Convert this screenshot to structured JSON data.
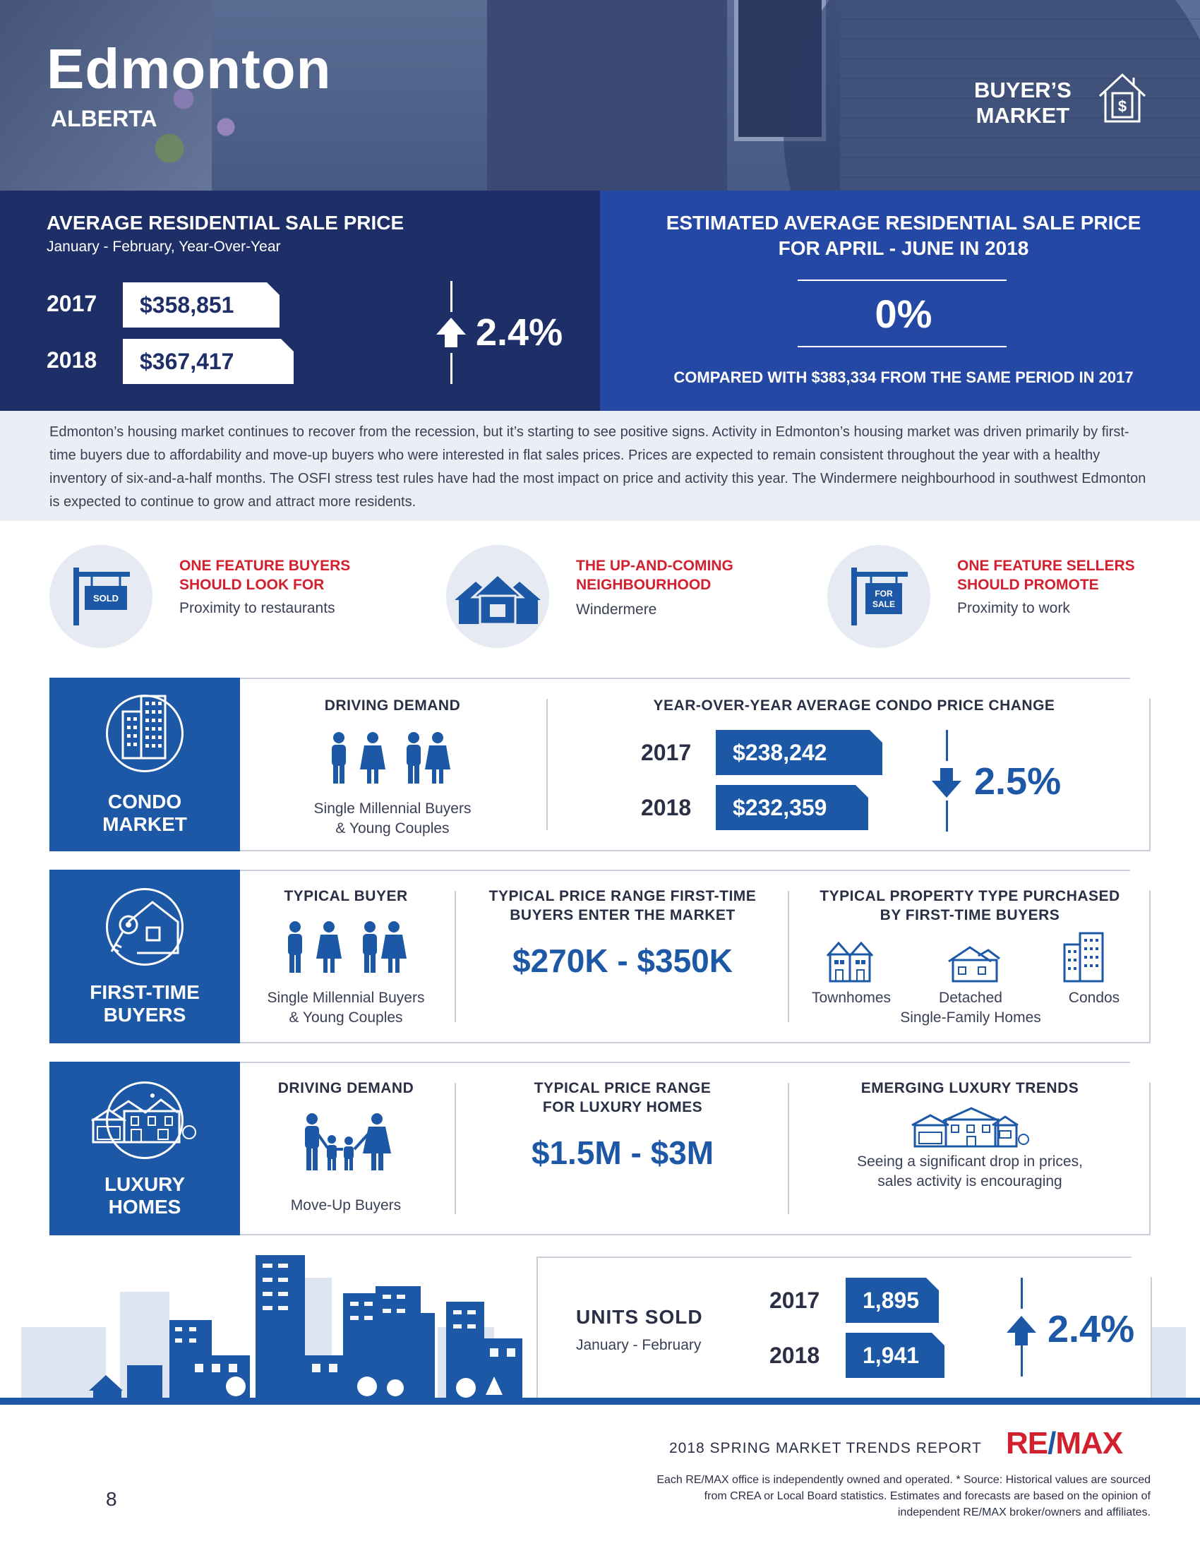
{
  "header": {
    "city": "Edmonton",
    "province": "ALBERTA",
    "market_type_line1": "BUYER’S",
    "market_type_line2": "MARKET",
    "market_icon": "house-dollar-icon"
  },
  "avg_price": {
    "title": "AVERAGE RESIDENTIAL SALE PRICE",
    "subtitle": "January - February, Year-Over-Year",
    "rows": [
      {
        "year": "2017",
        "value": "$358,851"
      },
      {
        "year": "2018",
        "value": "$367,417"
      }
    ],
    "change": "2.4%",
    "direction": "up"
  },
  "estimate": {
    "title_line1": "ESTIMATED AVERAGE RESIDENTIAL SALE PRICE",
    "title_line2": "FOR APRIL - JUNE IN 2018",
    "value": "0%",
    "compare": "COMPARED WITH $383,334 FROM THE SAME PERIOD IN 2017"
  },
  "description": "Edmonton’s housing market continues to recover from the recession, but it’s starting to see positive signs. Activity in Edmonton’s housing market was driven primarily by first-time buyers due to affordability and move-up buyers who were interested in flat sales prices. Prices are expected to remain consistent throughout the year with a healthy inventory of six-and-a-half months. The OSFI stress test rules have had the most impact on price and activity this year. The Windermere neighbourhood in southwest Edmonton is expected to continue to grow and attract more residents.",
  "features": [
    {
      "title_line1": "ONE FEATURE BUYERS",
      "title_line2": "SHOULD LOOK FOR",
      "value": "Proximity to restaurants",
      "icon": "sold-sign-icon",
      "sign_text": "SOLD"
    },
    {
      "title_line1": "THE UP-AND-COMING",
      "title_line2": "NEIGHBOURHOOD",
      "value": "Windermere",
      "icon": "neighbourhood-houses-icon"
    },
    {
      "title_line1": "ONE FEATURE SELLERS",
      "title_line2": "SHOULD PROMOTE",
      "value": "Proximity to work",
      "icon": "for-sale-sign-icon",
      "sign_text_1": "FOR",
      "sign_text_2": "SALE"
    }
  ],
  "condo": {
    "label_line1": "CONDO",
    "label_line2": "MARKET",
    "demand_title": "DRIVING DEMAND",
    "demand_text_1": "Single Millennial Buyers",
    "demand_text_2": "& Young Couples",
    "price_title": "YEAR-OVER-YEAR AVERAGE CONDO PRICE CHANGE",
    "rows": [
      {
        "year": "2017",
        "value": "$238,242"
      },
      {
        "year": "2018",
        "value": "$232,359"
      }
    ],
    "change": "2.5%",
    "direction": "down"
  },
  "first_time": {
    "label_line1": "FIRST-TIME",
    "label_line2": "BUYERS",
    "buyer_title": "TYPICAL BUYER",
    "buyer_text_1": "Single Millennial Buyers",
    "buyer_text_2": "& Young Couples",
    "range_title_1": "TYPICAL PRICE RANGE FIRST-TIME",
    "range_title_2": "BUYERS ENTER THE MARKET",
    "range_value": "$270K - $350K",
    "type_title_1": "TYPICAL PROPERTY TYPE PURCHASED",
    "type_title_2": "BY FIRST-TIME BUYERS",
    "types": [
      "Townhomes",
      "Detached",
      "Condos"
    ],
    "types_sub": "Single-Family Homes"
  },
  "luxury": {
    "label_line1": "LUXURY",
    "label_line2": "HOMES",
    "demand_title": "DRIVING DEMAND",
    "demand_text": "Move-Up Buyers",
    "range_title_1": "TYPICAL PRICE RANGE",
    "range_title_2": "FOR LUXURY HOMES",
    "range_value": "$1.5M - $3M",
    "trend_title": "EMERGING LUXURY TRENDS",
    "trend_text_1": "Seeing a significant drop in prices,",
    "trend_text_2": "sales activity is encouraging"
  },
  "units_sold": {
    "title": "UNITS SOLD",
    "subtitle": "January - February",
    "rows": [
      {
        "year": "2017",
        "value": "1,895"
      },
      {
        "year": "2018",
        "value": "1,941"
      }
    ],
    "change": "2.4%",
    "direction": "up"
  },
  "footer": {
    "report": "2018 SPRING MARKET TRENDS REPORT",
    "logo_a": "RE",
    "logo_b": "/",
    "logo_c": "MAX",
    "disclaimer_1": "Each RE/MAX office is independently owned and operated. * Source: Historical values are sourced",
    "disclaimer_2": "from CREA or Local Board statistics. Estimates and forecasts are based on the opinion of",
    "disclaimer_3": "independent RE/MAX broker/owners and affiliates.",
    "page": "8"
  },
  "colors": {
    "navy": "#1e2f68",
    "royal": "#2448a3",
    "blue": "#1d58a6",
    "red": "#d2202f",
    "light": "#eaeef5"
  }
}
